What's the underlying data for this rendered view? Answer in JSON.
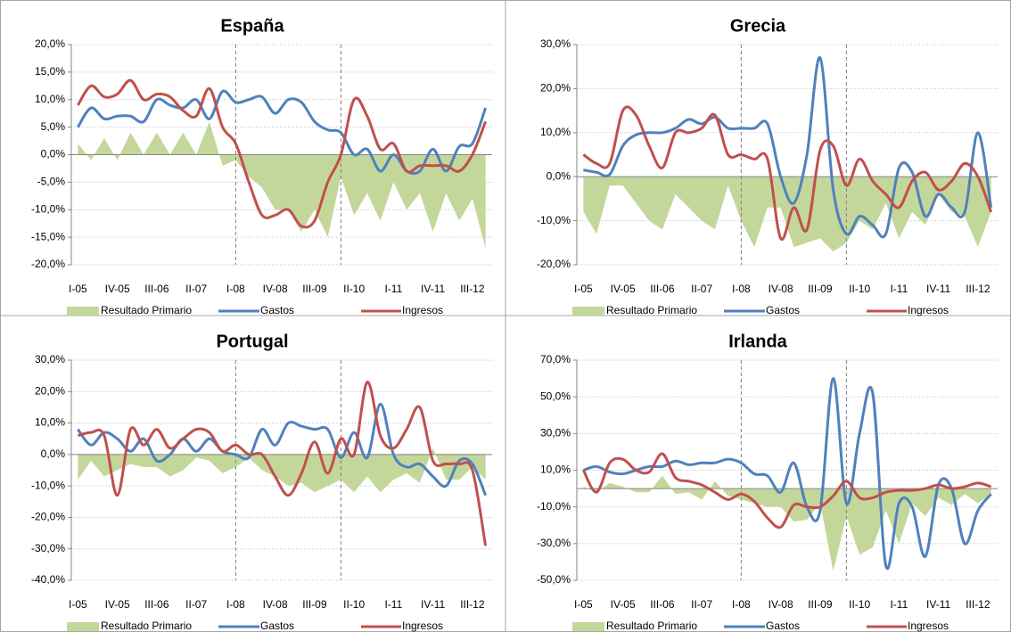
{
  "chart_data": [
    {
      "type": "line",
      "title": "España",
      "categories": [
        "I-05",
        null,
        null,
        "IV-05",
        null,
        null,
        "III-06",
        null,
        null,
        "II-07",
        null,
        null,
        "I-08",
        null,
        null,
        "IV-08",
        null,
        null,
        "III-09",
        null,
        null,
        "II-10",
        null,
        null,
        "I-11",
        null,
        null,
        "IV-11",
        null,
        null,
        "III-12",
        null
      ],
      "series": [
        {
          "name": "Resultado Primario",
          "type": "area",
          "color": "#c4d79b",
          "values": [
            2,
            -1,
            3,
            -1,
            4,
            0,
            4,
            0,
            4,
            0,
            6,
            -2,
            -1,
            -4,
            -6,
            -10,
            -10,
            -14,
            -10,
            -15,
            -4,
            -11,
            -7,
            -12,
            -5,
            -10,
            -7,
            -14,
            -7,
            -12,
            -8,
            -17
          ]
        },
        {
          "name": "Gastos",
          "type": "line",
          "color": "#4f81bd",
          "values": [
            5,
            8.5,
            6.5,
            7,
            7,
            6,
            10,
            9,
            8.5,
            10,
            6.5,
            11.5,
            9.5,
            10,
            10.5,
            7.5,
            10,
            9.5,
            6,
            4.5,
            4,
            0,
            1,
            -3,
            0,
            -3,
            -3,
            1,
            -3,
            1.5,
            2,
            8.5
          ]
        },
        {
          "name": "Ingresos",
          "type": "line",
          "color": "#c0504d",
          "values": [
            9,
            12.5,
            10.5,
            11,
            13.5,
            10,
            11,
            10.5,
            8,
            7,
            12,
            5,
            2,
            -5,
            -11,
            -11,
            -10,
            -13,
            -12,
            -5,
            0,
            10,
            7,
            1,
            2,
            -3,
            -2,
            -2,
            -2,
            -3,
            0,
            6
          ]
        }
      ],
      "ylim": [
        -20,
        20
      ],
      "yticks": [
        {
          "value": -20,
          "label": "-20,0%"
        },
        {
          "value": -15,
          "label": "-15,0%"
        },
        {
          "value": -10,
          "label": "-10,0%"
        },
        {
          "value": -5,
          "label": "-5,0%"
        },
        {
          "value": 0,
          "label": "0,0%"
        },
        {
          "value": 5,
          "label": "5,0%"
        },
        {
          "value": 10,
          "label": "10,0%"
        },
        {
          "value": 15,
          "label": "15,0%"
        },
        {
          "value": 20,
          "label": "20,0%"
        }
      ],
      "grid": true,
      "legend": "bottom"
    },
    {
      "type": "line",
      "title": "Grecia",
      "categories": [
        "I-05",
        null,
        null,
        "IV-05",
        null,
        null,
        "III-06",
        null,
        null,
        "II-07",
        null,
        null,
        "I-08",
        null,
        null,
        "IV-08",
        null,
        null,
        "III-09",
        null,
        null,
        "II-10",
        null,
        null,
        "I-11",
        null,
        null,
        "IV-11",
        null,
        null,
        "III-12",
        null
      ],
      "series": [
        {
          "name": "Resultado Primario",
          "type": "area",
          "color": "#c4d79b",
          "values": [
            -8,
            -13,
            -2,
            -2,
            -6,
            -10,
            -12,
            -4,
            -7,
            -10,
            -12,
            -2,
            -10,
            -16,
            -7,
            -7,
            -16,
            -15,
            -14,
            -17,
            -15,
            -10,
            -12,
            -6,
            -14,
            -8,
            -11,
            -4,
            -8,
            -9,
            -16,
            -8
          ]
        },
        {
          "name": "Gastos",
          "type": "line",
          "color": "#4f81bd",
          "values": [
            1.5,
            1,
            0.5,
            7,
            9.5,
            10,
            10,
            11,
            13,
            12,
            13.5,
            11,
            11,
            11,
            12,
            0,
            -6,
            5,
            27,
            -3,
            -13,
            -9,
            -11,
            -13,
            2,
            1,
            -9,
            -4,
            -7,
            -8,
            10,
            -7
          ]
        },
        {
          "name": "Ingresos",
          "type": "line",
          "color": "#c0504d",
          "values": [
            5,
            3,
            3,
            15,
            14,
            7,
            2,
            10,
            10,
            11,
            14,
            5,
            5,
            4,
            4,
            -14,
            -7,
            -12,
            6,
            7,
            -2,
            4,
            -1,
            -4,
            -7,
            -1,
            1,
            -3,
            -1,
            3,
            0,
            -8
          ]
        }
      ],
      "ylim": [
        -20,
        30
      ],
      "yticks": [
        {
          "value": -20,
          "label": "-20,0%"
        },
        {
          "value": -10,
          "label": "-10,0%"
        },
        {
          "value": 0,
          "label": "0,0%"
        },
        {
          "value": 10,
          "label": "10,0%"
        },
        {
          "value": 20,
          "label": "20,0%"
        },
        {
          "value": 30,
          "label": "30,0%"
        }
      ],
      "grid": true,
      "legend": "bottom"
    },
    {
      "type": "line",
      "title": "Portugal",
      "categories": [
        "I-05",
        null,
        null,
        "IV-05",
        null,
        null,
        "III-06",
        null,
        null,
        "II-07",
        null,
        null,
        "I-08",
        null,
        null,
        "IV-08",
        null,
        null,
        "III-09",
        null,
        null,
        "II-10",
        null,
        null,
        "I-11",
        null,
        null,
        "IV-11",
        null,
        null,
        "III-12",
        null
      ],
      "series": [
        {
          "name": "Resultado Primario",
          "type": "area",
          "color": "#c4d79b",
          "values": [
            -8,
            -2,
            -7,
            -5,
            -3,
            -4,
            -4,
            -7,
            -5,
            -1,
            -2,
            -6,
            -4,
            -1,
            -5,
            -7,
            -10,
            -9,
            -12,
            -10,
            -8,
            -12,
            -7,
            -12,
            -8,
            -6,
            -9,
            2,
            -8,
            -8,
            -4,
            -8
          ]
        },
        {
          "name": "Gastos",
          "type": "line",
          "color": "#4f81bd",
          "values": [
            8,
            3,
            7,
            5,
            1,
            5,
            -2,
            0,
            5,
            1,
            5,
            1,
            0,
            -1,
            8,
            3,
            10,
            9,
            8,
            8,
            -1,
            7,
            -1,
            16,
            0,
            -4,
            -3,
            -7,
            -10,
            -2,
            -3,
            -13
          ]
        },
        {
          "name": "Ingresos",
          "type": "line",
          "color": "#c0504d",
          "values": [
            6,
            7,
            6,
            -13,
            8,
            3,
            8,
            2,
            5,
            8,
            7,
            1,
            3,
            0,
            0,
            -7,
            -13,
            -6,
            4,
            -6,
            5,
            0,
            23,
            6,
            2,
            8,
            15,
            -2,
            -3,
            -3,
            -5,
            -29
          ]
        }
      ],
      "ylim": [
        -40,
        30
      ],
      "yticks": [
        {
          "value": -40,
          "label": "-40,0%"
        },
        {
          "value": -30,
          "label": "-30,0%"
        },
        {
          "value": -20,
          "label": "-20,0%"
        },
        {
          "value": -10,
          "label": "-10,0%"
        },
        {
          "value": 0,
          "label": "0,0%"
        },
        {
          "value": 10,
          "label": "10,0%"
        },
        {
          "value": 20,
          "label": "20,0%"
        },
        {
          "value": 30,
          "label": "30,0%"
        }
      ],
      "grid": true,
      "legend": "bottom"
    },
    {
      "type": "line",
      "title": "Irlanda",
      "categories": [
        "I-05",
        null,
        null,
        "IV-05",
        null,
        null,
        "III-06",
        null,
        null,
        "II-07",
        null,
        null,
        "I-08",
        null,
        null,
        "IV-08",
        null,
        null,
        "III-09",
        null,
        null,
        "II-10",
        null,
        null,
        "I-11",
        null,
        null,
        "IV-11",
        null,
        null,
        "III-12",
        null
      ],
      "series": [
        {
          "name": "Resultado Primario",
          "type": "area",
          "color": "#c4d79b",
          "values": [
            1,
            -2,
            3,
            1,
            -2,
            -2,
            7,
            -3,
            -2,
            -6,
            4,
            -4,
            -6,
            -8,
            -10,
            -10,
            -18,
            -17,
            -8,
            -45,
            -15,
            -36,
            -32,
            -12,
            -30,
            -8,
            -15,
            -5,
            -9,
            -3,
            -8,
            -3
          ]
        },
        {
          "name": "Gastos",
          "type": "line",
          "color": "#4f81bd",
          "values": [
            10,
            12,
            9,
            8,
            10,
            12,
            12,
            15,
            13,
            14,
            14,
            16,
            14,
            8,
            7,
            -2,
            14,
            -10,
            -12,
            60,
            -8,
            30,
            52,
            -42,
            -8,
            -10,
            -37,
            2,
            0,
            -30,
            -12,
            -3
          ]
        },
        {
          "name": "Ingresos",
          "type": "line",
          "color": "#c0504d",
          "values": [
            10,
            -2,
            14,
            16,
            10,
            9,
            19,
            6,
            4,
            2,
            -2,
            -6,
            -3,
            -7,
            -16,
            -21,
            -9,
            -10,
            -10,
            -4,
            4,
            -5,
            -5,
            -2,
            -1,
            -1,
            0,
            2,
            0,
            1,
            3,
            1
          ]
        }
      ],
      "ylim": [
        -50,
        70
      ],
      "yticks": [
        {
          "value": -50,
          "label": "-50,0%"
        },
        {
          "value": -30,
          "label": "-30,0%"
        },
        {
          "value": -10,
          "label": "-10,0%"
        },
        {
          "value": 10,
          "label": "10,0%"
        },
        {
          "value": 30,
          "label": "30,0%"
        },
        {
          "value": 50,
          "label": "50,0%"
        },
        {
          "value": 70,
          "label": "70,0%"
        }
      ],
      "grid": true,
      "legend": "bottom"
    }
  ]
}
